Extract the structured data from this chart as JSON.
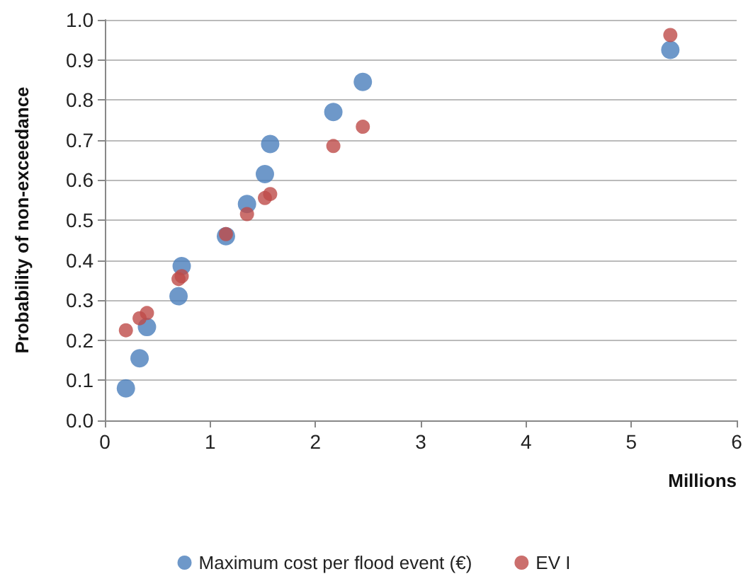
{
  "chart_data": {
    "type": "scatter",
    "ylabel": "Probability of non-exceedance",
    "xlabel": "Millions",
    "xlim": [
      0,
      6
    ],
    "xticks": [
      0,
      1,
      2,
      3,
      4,
      5,
      6
    ],
    "ylim": [
      0,
      1
    ],
    "yticks": [
      {
        "value": 0,
        "label": "0.0"
      },
      {
        "value": 0.1,
        "label": "0.1"
      },
      {
        "value": 0.2,
        "label": "0.2"
      },
      {
        "value": 0.3,
        "label": "0.3"
      },
      {
        "value": 0.4,
        "label": "0.4"
      },
      {
        "value": 0.5,
        "label": "0.5"
      },
      {
        "value": 0.6,
        "label": "0.6"
      },
      {
        "value": 0.7,
        "label": "0.7"
      },
      {
        "value": 0.8,
        "label": "0.8"
      },
      {
        "value": 0.9,
        "label": "0.9"
      },
      {
        "value": 1,
        "label": "1.0"
      }
    ],
    "grid": "y",
    "legend": "bottom",
    "marker": "circle",
    "series": [
      {
        "name": "Maximum cost per flood event (€)",
        "color": "#4a7ebb",
        "x": [
          0.2,
          0.33,
          0.4,
          0.7,
          0.73,
          1.15,
          1.35,
          1.52,
          1.57,
          2.17,
          2.45,
          5.37
        ],
        "values": [
          0.08,
          0.155,
          0.233,
          0.31,
          0.385,
          0.46,
          0.54,
          0.615,
          0.69,
          0.77,
          0.845,
          0.925
        ]
      },
      {
        "name": "EV I",
        "color": "#be4b48",
        "x": [
          0.2,
          0.33,
          0.4,
          0.7,
          0.73,
          1.15,
          1.35,
          1.52,
          1.57,
          2.17,
          2.45,
          5.37
        ],
        "values": [
          0.225,
          0.255,
          0.268,
          0.353,
          0.36,
          0.465,
          0.515,
          0.555,
          0.565,
          0.685,
          0.733,
          0.962
        ]
      }
    ]
  }
}
